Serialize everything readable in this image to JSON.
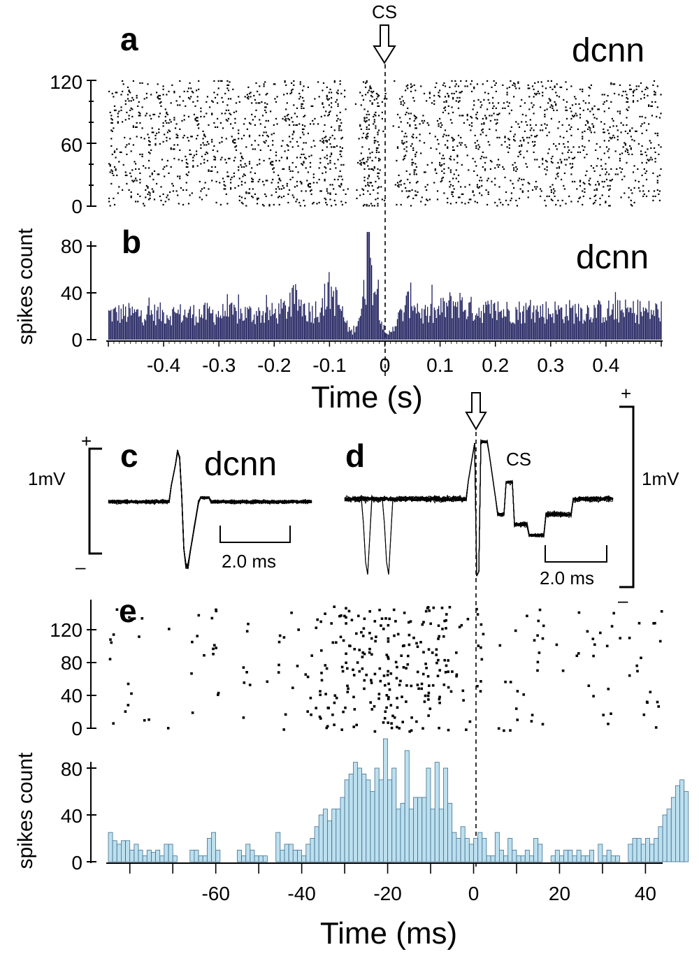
{
  "colors": {
    "hist_b": "#1c1d5c",
    "hist_e_fill": "#bde0ef",
    "hist_e_stroke": "#3f6f8f",
    "ink": "#000000"
  },
  "top": {
    "cs_label": "CS",
    "panel_a": "a",
    "panel_b": "b",
    "name_a": "dcnn",
    "name_b": "dcnn",
    "ylabel": "spikes count",
    "xlabel": "Time (s)"
  },
  "traces": {
    "panel_c": "c",
    "panel_d": "d",
    "name_c": "dcnn",
    "cs_label": "CS",
    "scale_v_left": "1mV",
    "scale_v_right": "1mV",
    "scale_t_left": "2.0 ms",
    "scale_t_right": "2.0 ms",
    "plus_left": "+",
    "minus_left": "–",
    "plus_right": "+",
    "minus_right": "–"
  },
  "bottom": {
    "panel_e": "e",
    "ylabel": "spikes count",
    "xlabel": "Time (ms)"
  },
  "chart_data": [
    {
      "id": "a",
      "type": "scatter",
      "title": "dcnn",
      "description_kind": "raster",
      "xlim": [
        -0.5,
        0.5
      ],
      "ylim": [
        0,
        120
      ],
      "yticks": [
        "0",
        "60",
        "120"
      ],
      "trials": 120,
      "event_time": 0,
      "event_label": "CS"
    },
    {
      "id": "b",
      "type": "bar",
      "title": "dcnn",
      "xlabel": "Time (s)",
      "ylabel": "spikes count",
      "xlim": [
        -0.5,
        0.5
      ],
      "ylim": [
        0,
        100
      ],
      "xticks": [
        "-0.4",
        "-0.3",
        "-0.2",
        "-0.1",
        "0",
        "0.1",
        "0.2",
        "0.3",
        "0.4"
      ],
      "yticks": [
        "0",
        "40",
        "80"
      ],
      "envelope": {
        "t": [
          -0.5,
          -0.2,
          -0.18,
          -0.16,
          -0.14,
          -0.12,
          -0.1,
          -0.08,
          -0.07,
          -0.06,
          -0.045,
          -0.03,
          -0.015,
          -0.005,
          0.0,
          0.005,
          0.015,
          0.03,
          0.04,
          0.05,
          0.06,
          0.07,
          0.09,
          0.11,
          0.13,
          0.15,
          0.2,
          0.5
        ],
        "count": [
          22,
          22,
          26,
          34,
          24,
          26,
          42,
          26,
          12,
          6,
          22,
          58,
          42,
          14,
          4,
          4,
          12,
          22,
          30,
          36,
          26,
          20,
          22,
          28,
          32,
          26,
          24,
          24
        ]
      },
      "peak": {
        "t": -0.03,
        "count": 92
      }
    },
    {
      "id": "e_raster",
      "type": "scatter",
      "description_kind": "raster",
      "xlim": [
        -85,
        44
      ],
      "ylim": [
        0,
        150
      ],
      "yticks": [
        "0",
        "40",
        "80",
        "120"
      ],
      "event_time": 0
    },
    {
      "id": "e_hist",
      "type": "bar",
      "xlabel": "Time (ms)",
      "ylabel": "spikes count",
      "xlim": [
        -85,
        44
      ],
      "ylim": [
        0,
        100
      ],
      "xticks": [
        "-60",
        "-40",
        "-20",
        "0",
        "20",
        "40"
      ],
      "yticks": [
        "0",
        "40",
        "80"
      ],
      "bin_width_ms": 1,
      "bin_start_ms": -85,
      "values": [
        25,
        18,
        15,
        18,
        18,
        10,
        15,
        10,
        5,
        10,
        8,
        10,
        5,
        15,
        15,
        5,
        0,
        0,
        0,
        10,
        10,
        5,
        5,
        20,
        25,
        10,
        0,
        0,
        0,
        0,
        10,
        5,
        15,
        10,
        5,
        5,
        5,
        0,
        0,
        25,
        10,
        15,
        15,
        10,
        10,
        5,
        15,
        20,
        30,
        40,
        45,
        35,
        45,
        45,
        55,
        70,
        75,
        85,
        80,
        75,
        70,
        60,
        80,
        70,
        105,
        70,
        80,
        45,
        50,
        95,
        45,
        55,
        55,
        55,
        80,
        45,
        85,
        45,
        80,
        50,
        25,
        20,
        30,
        20,
        15,
        20,
        25,
        20,
        5,
        5,
        25,
        10,
        5,
        20,
        10,
        5,
        5,
        10,
        5,
        20,
        15,
        0,
        0,
        5,
        10,
        5,
        10,
        10,
        5,
        10,
        5,
        5,
        10,
        0,
        15,
        5,
        10,
        5,
        5,
        0,
        0,
        15,
        20,
        20,
        15,
        20,
        15,
        20,
        30,
        40,
        45,
        55,
        65,
        70,
        60
      ]
    }
  ]
}
